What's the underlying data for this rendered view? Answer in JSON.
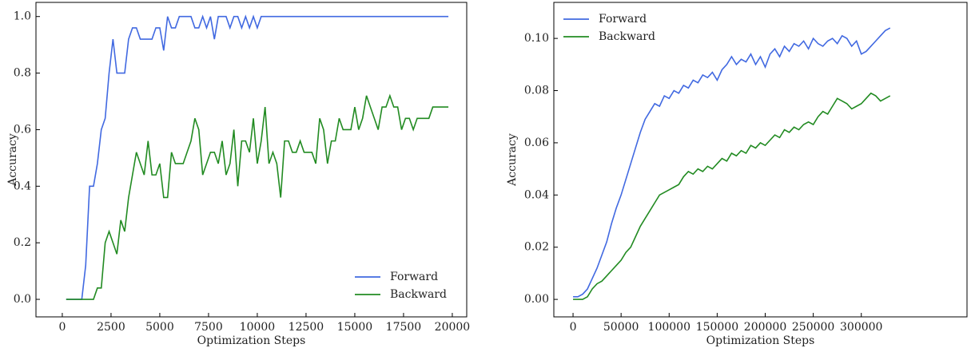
{
  "chart_data": [
    {
      "type": "line",
      "xlabel": "Optimization Steps",
      "ylabel": "Accuracy",
      "legend": "lower right",
      "xlim": [
        -1350,
        20740
      ],
      "ylim": [
        -0.062,
        1.05
      ],
      "xticks": [
        0,
        2500,
        5000,
        7500,
        10000,
        12500,
        15000,
        17500,
        20000
      ],
      "yticks": [
        {
          "value": 0,
          "label": "0.0"
        },
        {
          "value": 0.2,
          "label": "0.2"
        },
        {
          "value": 0.4,
          "label": "0.4"
        },
        {
          "value": 0.6,
          "label": "0.6"
        },
        {
          "value": 0.8,
          "label": "0.8"
        },
        {
          "value": 1,
          "label": "1.0"
        }
      ],
      "x": [
        200,
        400,
        600,
        800,
        1000,
        1200,
        1400,
        1600,
        1800,
        2000,
        2200,
        2400,
        2600,
        2800,
        3000,
        3200,
        3400,
        3600,
        3800,
        4000,
        4200,
        4400,
        4600,
        4800,
        5000,
        5200,
        5400,
        5600,
        5800,
        6000,
        6200,
        6400,
        6600,
        6800,
        7000,
        7200,
        7400,
        7600,
        7800,
        8000,
        8200,
        8400,
        8600,
        8800,
        9000,
        9200,
        9400,
        9600,
        9800,
        10000,
        10200,
        10400,
        10600,
        10800,
        11000,
        11200,
        11400,
        11600,
        11800,
        12000,
        12200,
        12400,
        12600,
        12800,
        13000,
        13200,
        13400,
        13600,
        13800,
        14000,
        14200,
        14400,
        14600,
        14800,
        15000,
        15200,
        15400,
        15600,
        15800,
        16000,
        16200,
        16400,
        16600,
        16800,
        17000,
        17200,
        17400,
        17600,
        17800,
        18000,
        18200,
        18400,
        18600,
        18800,
        19000,
        19200,
        19400,
        19600,
        19800
      ],
      "series": [
        {
          "name": "Forward",
          "color": "#4169e1",
          "values": [
            0,
            0,
            0,
            0,
            0,
            0.12,
            0.4,
            0.4,
            0.48,
            0.6,
            0.64,
            0.8,
            0.92,
            0.8,
            0.8,
            0.8,
            0.92,
            0.96,
            0.96,
            0.92,
            0.92,
            0.92,
            0.92,
            0.96,
            0.96,
            0.88,
            1,
            0.96,
            0.96,
            1,
            1,
            1,
            1,
            0.96,
            0.96,
            1,
            0.96,
            1,
            0.92,
            1,
            1,
            1,
            0.96,
            1,
            1,
            0.96,
            1,
            0.96,
            1,
            0.96,
            1,
            1,
            1,
            1,
            1,
            1,
            1,
            1,
            1,
            1,
            1,
            1,
            1,
            1,
            1,
            1,
            1,
            1,
            1,
            1,
            1,
            1,
            1,
            1,
            1,
            1,
            1,
            1,
            1,
            1,
            1,
            1,
            1,
            1,
            1,
            1,
            1,
            1,
            1,
            1,
            1,
            1,
            1,
            1,
            1,
            1,
            1,
            1,
            1
          ]
        },
        {
          "name": "Backward",
          "color": "#228b22",
          "values": [
            0,
            0,
            0,
            0,
            0,
            0,
            0,
            0,
            0.04,
            0.04,
            0.2,
            0.24,
            0.2,
            0.16,
            0.28,
            0.24,
            0.36,
            0.44,
            0.52,
            0.48,
            0.44,
            0.56,
            0.44,
            0.44,
            0.48,
            0.36,
            0.36,
            0.52,
            0.48,
            0.48,
            0.48,
            0.52,
            0.56,
            0.64,
            0.6,
            0.44,
            0.48,
            0.52,
            0.52,
            0.48,
            0.56,
            0.44,
            0.48,
            0.6,
            0.4,
            0.56,
            0.56,
            0.52,
            0.64,
            0.48,
            0.56,
            0.68,
            0.48,
            0.52,
            0.48,
            0.36,
            0.56,
            0.56,
            0.52,
            0.52,
            0.56,
            0.52,
            0.52,
            0.52,
            0.48,
            0.64,
            0.6,
            0.48,
            0.56,
            0.56,
            0.64,
            0.6,
            0.6,
            0.6,
            0.68,
            0.6,
            0.64,
            0.72,
            0.68,
            0.64,
            0.6,
            0.68,
            0.68,
            0.72,
            0.68,
            0.68,
            0.6,
            0.64,
            0.64,
            0.6,
            0.64,
            0.64,
            0.64,
            0.64,
            0.68,
            0.68,
            0.68,
            0.68,
            0.68
          ]
        }
      ]
    },
    {
      "type": "line",
      "xlabel": "Optimization Steps",
      "ylabel": "Accuracy",
      "legend": "upper left",
      "xlim": [
        -20000,
        410000
      ],
      "ylim": [
        -0.0067,
        0.1138
      ],
      "xticks": [
        0,
        50000,
        100000,
        150000,
        200000,
        250000,
        300000
      ],
      "yticks": [
        {
          "value": 0,
          "label": "0.00"
        },
        {
          "value": 0.02,
          "label": "0.02"
        },
        {
          "value": 0.04,
          "label": "0.04"
        },
        {
          "value": 0.06,
          "label": "0.06"
        },
        {
          "value": 0.08,
          "label": "0.08"
        },
        {
          "value": 0.1,
          "label": "0.10"
        }
      ],
      "x": [
        0,
        5000,
        10000,
        15000,
        20000,
        25000,
        30000,
        35000,
        40000,
        45000,
        50000,
        55000,
        60000,
        65000,
        70000,
        75000,
        80000,
        85000,
        90000,
        95000,
        100000,
        105000,
        110000,
        115000,
        120000,
        125000,
        130000,
        135000,
        140000,
        145000,
        150000,
        155000,
        160000,
        165000,
        170000,
        175000,
        180000,
        185000,
        190000,
        195000,
        200000,
        205000,
        210000,
        215000,
        220000,
        225000,
        230000,
        235000,
        240000,
        245000,
        250000,
        255000,
        260000,
        265000,
        270000,
        275000,
        280000,
        285000,
        290000,
        295000,
        300000,
        305000,
        310000,
        315000,
        320000,
        325000,
        330000
      ],
      "series": [
        {
          "name": "Forward",
          "color": "#4169e1",
          "values": [
            0.001,
            0.001,
            0.002,
            0.004,
            0.008,
            0.012,
            0.017,
            0.022,
            0.029,
            0.035,
            0.04,
            0.046,
            0.052,
            0.058,
            0.064,
            0.069,
            0.072,
            0.075,
            0.074,
            0.078,
            0.077,
            0.08,
            0.079,
            0.082,
            0.081,
            0.084,
            0.083,
            0.086,
            0.085,
            0.087,
            0.084,
            0.088,
            0.09,
            0.093,
            0.09,
            0.092,
            0.091,
            0.094,
            0.09,
            0.093,
            0.089,
            0.094,
            0.096,
            0.093,
            0.097,
            0.095,
            0.098,
            0.097,
            0.099,
            0.096,
            0.1,
            0.098,
            0.097,
            0.099,
            0.1,
            0.098,
            0.101,
            0.1,
            0.097,
            0.099,
            0.094,
            0.095,
            0.097,
            0.099,
            0.101,
            0.103,
            0.104
          ]
        },
        {
          "name": "Backward",
          "color": "#228b22",
          "values": [
            0,
            0,
            0,
            0.001,
            0.004,
            0.006,
            0.007,
            0.009,
            0.011,
            0.013,
            0.015,
            0.018,
            0.02,
            0.024,
            0.028,
            0.031,
            0.034,
            0.037,
            0.04,
            0.041,
            0.042,
            0.043,
            0.044,
            0.047,
            0.049,
            0.048,
            0.05,
            0.049,
            0.051,
            0.05,
            0.052,
            0.054,
            0.053,
            0.056,
            0.055,
            0.057,
            0.056,
            0.059,
            0.058,
            0.06,
            0.059,
            0.061,
            0.063,
            0.062,
            0.065,
            0.064,
            0.066,
            0.065,
            0.067,
            0.068,
            0.067,
            0.07,
            0.072,
            0.071,
            0.074,
            0.077,
            0.076,
            0.075,
            0.073,
            0.074,
            0.075,
            0.077,
            0.079,
            0.078,
            0.076,
            0.077,
            0.078
          ]
        }
      ]
    }
  ]
}
